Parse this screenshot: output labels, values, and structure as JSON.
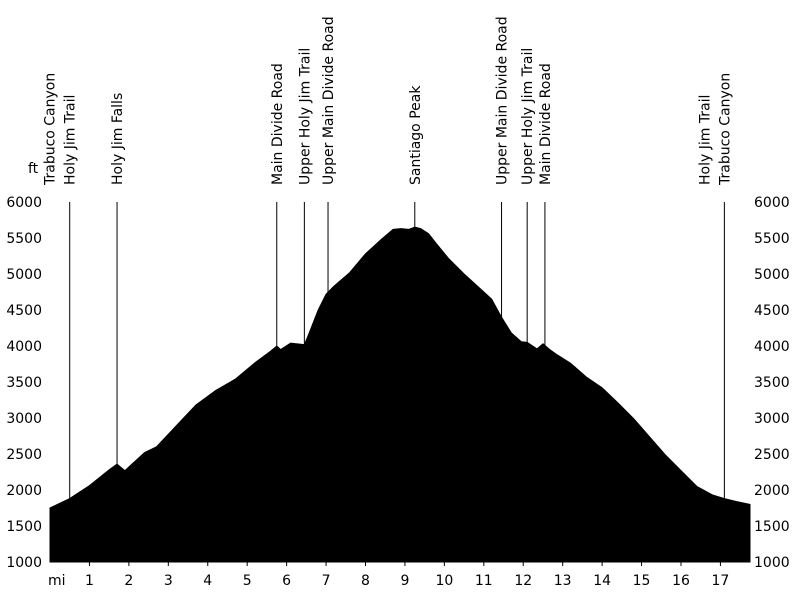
{
  "chart_data": {
    "type": "area",
    "x_unit": "mi",
    "y_unit": "ft",
    "xlim": [
      0,
      17.75
    ],
    "ylim": [
      1000,
      6000
    ],
    "x_ticks": [
      1,
      2,
      3,
      4,
      5,
      6,
      7,
      8,
      9,
      10,
      11,
      12,
      13,
      14,
      15,
      16,
      17
    ],
    "y_ticks": [
      1000,
      1500,
      2000,
      2500,
      3000,
      3500,
      4000,
      4500,
      5000,
      5500,
      6000
    ],
    "fill_color": "#000000",
    "profile": {
      "x": [
        0,
        0.5,
        1,
        1.5,
        1.7,
        1.9,
        2.4,
        2.7,
        3.2,
        3.7,
        4.2,
        4.7,
        5.2,
        5.6,
        5.75,
        5.85,
        6.1,
        6.45,
        6.55,
        6.8,
        7.0,
        7.2,
        7.6,
        8.0,
        8.4,
        8.7,
        8.9,
        9.1,
        9.25,
        9.4,
        9.6,
        9.8,
        10.1,
        10.5,
        10.9,
        11.2,
        11.45,
        11.7,
        11.95,
        12.1,
        12.35,
        12.5,
        12.65,
        12.85,
        13.2,
        13.6,
        14.0,
        14.4,
        14.8,
        15.2,
        15.6,
        16.0,
        16.4,
        16.8,
        17.1,
        17.4,
        17.75
      ],
      "y": [
        1750,
        1880,
        2060,
        2280,
        2360,
        2270,
        2520,
        2600,
        2890,
        3180,
        3380,
        3540,
        3770,
        3930,
        4000,
        3950,
        4040,
        4020,
        4150,
        4500,
        4720,
        4830,
        5020,
        5280,
        5480,
        5620,
        5630,
        5620,
        5650,
        5630,
        5560,
        5420,
        5220,
        5000,
        4800,
        4650,
        4400,
        4180,
        4060,
        4050,
        3960,
        4030,
        3960,
        3880,
        3760,
        3570,
        3420,
        3210,
        2990,
        2740,
        2490,
        2270,
        2050,
        1930,
        1880,
        1840,
        1800
      ]
    },
    "waypoints": [
      {
        "x": 0.5,
        "labels": [
          "Trabuco Canyon",
          "Holy Jim Trail"
        ]
      },
      {
        "x": 1.7,
        "labels": [
          "Holy Jim Falls"
        ]
      },
      {
        "x": 5.75,
        "labels": [
          "Main Divide Road"
        ]
      },
      {
        "x": 6.45,
        "labels": [
          "Upper Holy Jim Trail"
        ]
      },
      {
        "x": 7.05,
        "labels": [
          "Upper Main Divide Road"
        ]
      },
      {
        "x": 9.25,
        "labels": [
          "Santiago Peak"
        ]
      },
      {
        "x": 11.45,
        "labels": [
          "Upper Main Divide Road"
        ]
      },
      {
        "x": 12.1,
        "labels": [
          "Upper Holy Jim Trail"
        ]
      },
      {
        "x": 12.55,
        "labels": [
          "Main Divide Road"
        ]
      },
      {
        "x": 17.1,
        "labels": [
          "Holy Jim Trail",
          "Trabuco Canyon"
        ]
      }
    ]
  }
}
